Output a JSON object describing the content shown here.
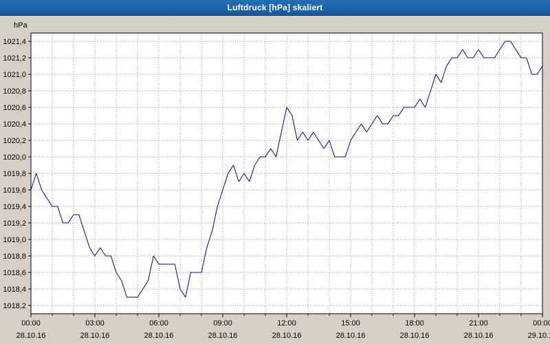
{
  "window": {
    "title": "Luftdruck [hPa] skaliert"
  },
  "colors": {
    "titlebar_blue": "#1b60a6",
    "background_gray": "#d4d0c8",
    "plot_background": "#ffffff",
    "grid_gray": "#9a9a9a",
    "axis_black": "#000000",
    "line_navy": "#00008b"
  },
  "chart_data": {
    "type": "line",
    "title": "Luftdruck [hPa] skaliert",
    "ylabel": "hPa",
    "xlabel": "",
    "grid": true,
    "legend": "none",
    "ylim": [
      1018.1,
      1021.5
    ],
    "x_start_hour": 0,
    "x_end_hour": 24,
    "x_step_hours": 0.25,
    "x_gridline_interval_hours": 1,
    "x_tick_interval_hours": 3,
    "y_ticks": [
      {
        "v": 1018.2,
        "label": "1018,2"
      },
      {
        "v": 1018.4,
        "label": "1018,4"
      },
      {
        "v": 1018.6,
        "label": "1018,6"
      },
      {
        "v": 1018.8,
        "label": "1018,8"
      },
      {
        "v": 1019.0,
        "label": "1019,0"
      },
      {
        "v": 1019.2,
        "label": "1019,2"
      },
      {
        "v": 1019.4,
        "label": "1019,4"
      },
      {
        "v": 1019.6,
        "label": "1019,6"
      },
      {
        "v": 1019.8,
        "label": "1019,8"
      },
      {
        "v": 1020.0,
        "label": "1020,0"
      },
      {
        "v": 1020.2,
        "label": "1020,2"
      },
      {
        "v": 1020.4,
        "label": "1020,4"
      },
      {
        "v": 1020.6,
        "label": "1020,6"
      },
      {
        "v": 1020.8,
        "label": "1020,8"
      },
      {
        "v": 1021.0,
        "label": "1021,0"
      },
      {
        "v": 1021.2,
        "label": "1021,2"
      },
      {
        "v": 1021.4,
        "label": "1021,4"
      }
    ],
    "x_tick_labels": [
      {
        "hour": 0,
        "time": "00:00",
        "date": "28.10.16"
      },
      {
        "hour": 3,
        "time": "03:00",
        "date": "28.10.16"
      },
      {
        "hour": 6,
        "time": "06:00",
        "date": "28.10.16"
      },
      {
        "hour": 9,
        "time": "09:00",
        "date": "28.10.16"
      },
      {
        "hour": 12,
        "time": "12:00",
        "date": "28.10.16"
      },
      {
        "hour": 15,
        "time": "15:00",
        "date": "28.10.16"
      },
      {
        "hour": 18,
        "time": "18:00",
        "date": "28.10.16"
      },
      {
        "hour": 21,
        "time": "21:00",
        "date": "28.10.16"
      },
      {
        "hour": 24,
        "time": "00:00",
        "date": "29.10.16"
      }
    ],
    "series": [
      {
        "name": "Luftdruck",
        "color": "#00008b",
        "values": [
          1019.6,
          1019.8,
          1019.6,
          1019.5,
          1019.4,
          1019.4,
          1019.2,
          1019.2,
          1019.3,
          1019.3,
          1019.1,
          1018.9,
          1018.8,
          1018.9,
          1018.8,
          1018.8,
          1018.6,
          1018.5,
          1018.3,
          1018.3,
          1018.3,
          1018.4,
          1018.5,
          1018.8,
          1018.7,
          1018.7,
          1018.7,
          1018.7,
          1018.4,
          1018.3,
          1018.6,
          1018.6,
          1018.6,
          1018.9,
          1019.1,
          1019.4,
          1019.6,
          1019.8,
          1019.9,
          1019.7,
          1019.8,
          1019.7,
          1019.9,
          1020.0,
          1020.0,
          1020.1,
          1020.0,
          1020.3,
          1020.6,
          1020.5,
          1020.2,
          1020.3,
          1020.2,
          1020.3,
          1020.2,
          1020.1,
          1020.2,
          1020.0,
          1020.0,
          1020.0,
          1020.2,
          1020.3,
          1020.4,
          1020.3,
          1020.4,
          1020.5,
          1020.4,
          1020.4,
          1020.5,
          1020.5,
          1020.6,
          1020.6,
          1020.6,
          1020.7,
          1020.6,
          1020.8,
          1021.0,
          1020.9,
          1021.1,
          1021.2,
          1021.2,
          1021.3,
          1021.2,
          1021.2,
          1021.3,
          1021.2,
          1021.2,
          1021.2,
          1021.3,
          1021.4,
          1021.4,
          1021.3,
          1021.2,
          1021.2,
          1021.0,
          1021.0,
          1021.1
        ]
      }
    ]
  }
}
